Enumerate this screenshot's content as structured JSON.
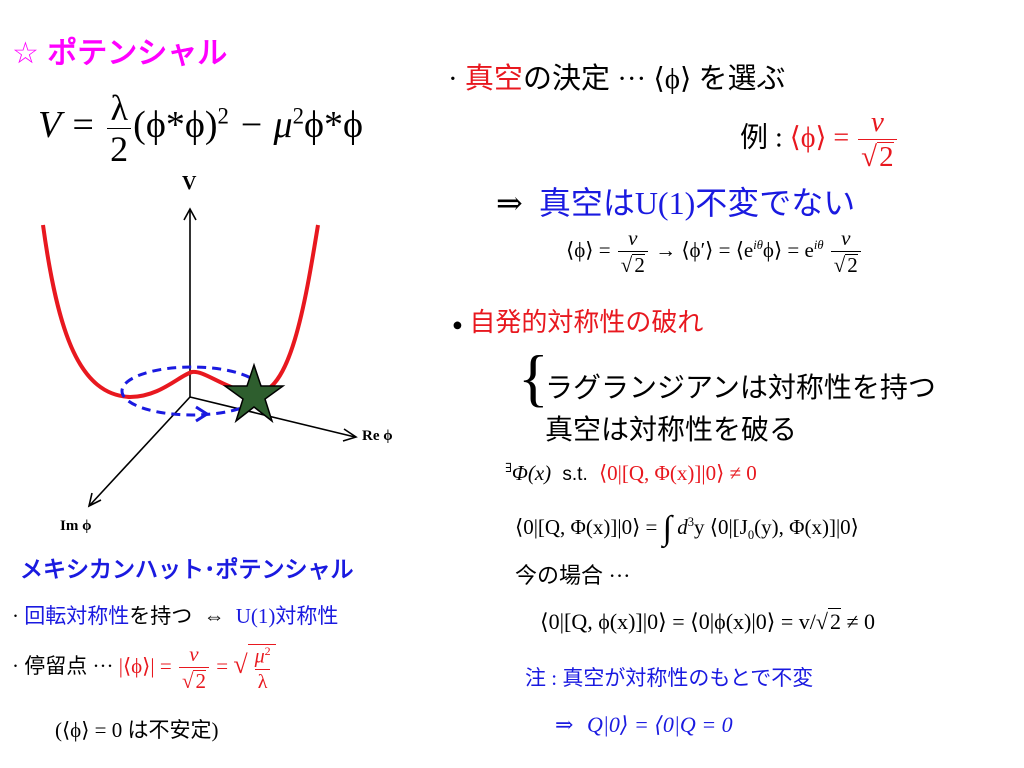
{
  "title": "☆ ポテンシャル",
  "potential_formula": {
    "lhs": "V =",
    "lambda": "λ",
    "two": "2",
    "term1": "(ϕ*ϕ)",
    "sq": "2",
    "minus": "− μ",
    "mu_sq": "2",
    "term2": "ϕ*ϕ"
  },
  "graph": {
    "v_label": "V",
    "re_label": "Re ϕ",
    "im_label": "Im ϕ",
    "colors": {
      "curve": "#e8181f",
      "circle": "#1a1ae0",
      "star": "#2e5e2e"
    }
  },
  "mexican_hat": "メキシカンハット･ポテンシャル",
  "rotation": {
    "dot": "·",
    "highlight": "回転対称性",
    "rest": "を持つ",
    "iff": "⇔",
    "u1": "U(1)",
    "sym": "対称性"
  },
  "stationary": {
    "label": "· 停留点 ···",
    "abs_phi": "|⟨ϕ⟩| =",
    "v": "v",
    "sqrt2": "2",
    "eq": "=",
    "mu2": "μ",
    "mu2sup": "2",
    "lam": "λ"
  },
  "unstable": "(⟨ϕ⟩ = 0 は不安定)",
  "vacuum": {
    "dot": "·",
    "highlight": "真空",
    "rest": "の決定 ··· ⟨ϕ⟩ を選ぶ"
  },
  "example": {
    "prefix": "例 :",
    "phi": "⟨ϕ⟩ =",
    "v": "v",
    "sqrt2": "2"
  },
  "not_invariant": {
    "arrow": "⇒",
    "text": "真空はU(1)不変でない"
  },
  "transform": {
    "left": "⟨ϕ⟩ =",
    "v": "v",
    "sqrt2": "2",
    "arrow": "→ ⟨ϕ′⟩ = ⟨e",
    "exp1": "iθ",
    "mid": "ϕ⟩ = e",
    "exp2": "iθ"
  },
  "ssb": {
    "bullet": "●",
    "title": "自発的対称性の破れ",
    "line1": "ラグランジアンは対称性を持つ",
    "line2": "真空は対称性を破る"
  },
  "exists": {
    "pre": "∃",
    "phi": "Φ(x)",
    "st": "s.t.",
    "cond": "⟨0|[Q, Φ(x)]|0⟩ ≠ 0"
  },
  "integral": {
    "lhs": "⟨0|[Q, Φ(x)]|0⟩ =",
    "int": "∫",
    "d3": "d",
    "d3sup": "3",
    "rest": "y ⟨0|[J",
    "sub0": "0",
    "end": "(y), Φ(x)]|0⟩"
  },
  "case": "今の場合 ···",
  "case_eq": {
    "main": "⟨0|[Q, ϕ(x)]|0⟩ = ⟨0|ϕ(x)|0⟩ = v/",
    "sqrt2": "2",
    "ne": "≠ 0"
  },
  "note": "注 : 真空が対称性のもとで不変",
  "final": {
    "arrow": "⇒",
    "eq": "Q|0⟩ = ⟨0|Q = 0"
  }
}
